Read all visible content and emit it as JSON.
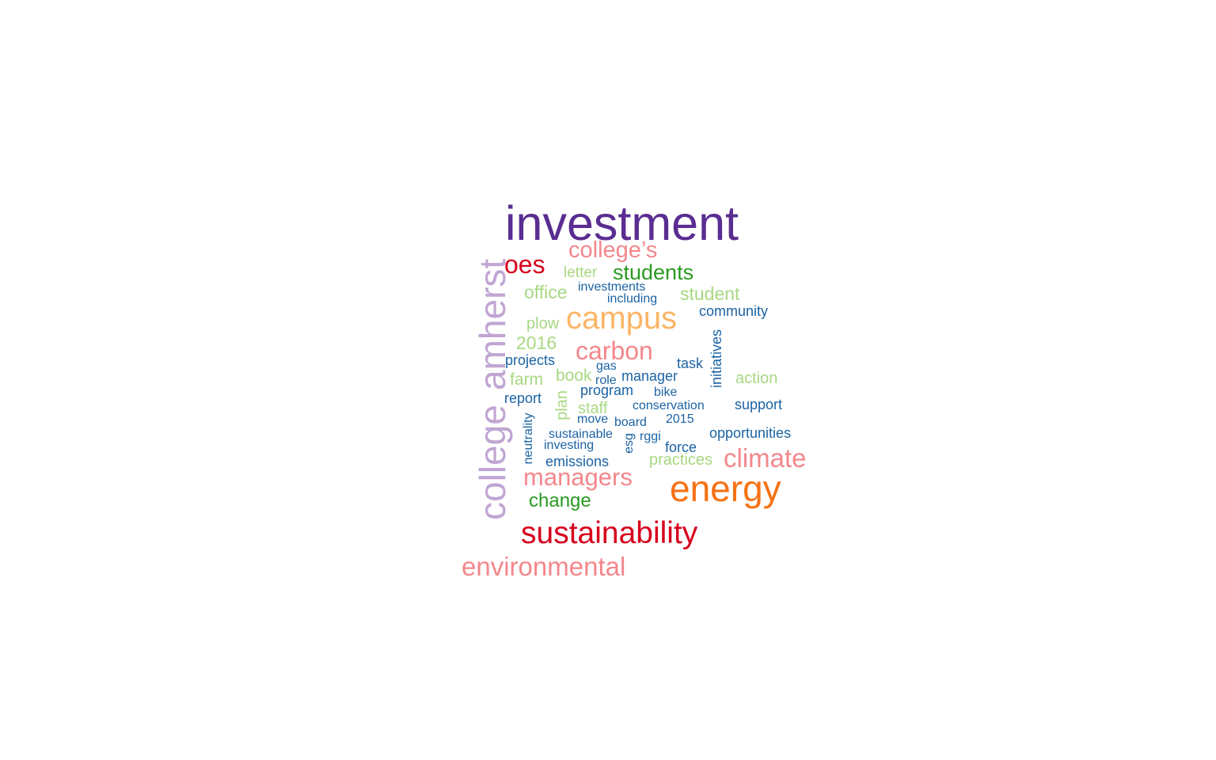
{
  "palette": {
    "purple": "#5a2d91",
    "lavender": "#c1a5d3",
    "red": "#d6001c",
    "pink": "#f4878c",
    "orange": "#f57214",
    "light_orange": "#fbb566",
    "green": "#2a9a22",
    "light_green": "#a8d882",
    "blue": "#1b63a4"
  },
  "words": [
    {
      "text": "investment",
      "color_key": "purple",
      "rotated": false
    },
    {
      "text": "college",
      "color_key": "lavender",
      "rotated": true
    },
    {
      "text": "amherst",
      "color_key": "lavender",
      "rotated": true
    },
    {
      "text": "energy",
      "color_key": "orange",
      "rotated": false
    },
    {
      "text": "sustainability",
      "color_key": "red",
      "rotated": false
    },
    {
      "text": "campus",
      "color_key": "light_orange",
      "rotated": false
    },
    {
      "text": "environmental",
      "color_key": "pink",
      "rotated": false
    },
    {
      "text": "climate",
      "color_key": "pink",
      "rotated": false
    },
    {
      "text": "managers",
      "color_key": "pink",
      "rotated": false
    },
    {
      "text": "carbon",
      "color_key": "pink",
      "rotated": false
    },
    {
      "text": "college’s",
      "color_key": "pink",
      "rotated": false
    },
    {
      "text": "oes",
      "color_key": "red",
      "rotated": false
    },
    {
      "text": "students",
      "color_key": "green",
      "rotated": false
    },
    {
      "text": "change",
      "color_key": "green",
      "rotated": false
    },
    {
      "text": "letter",
      "color_key": "light_green",
      "rotated": false
    },
    {
      "text": "office",
      "color_key": "light_green",
      "rotated": false
    },
    {
      "text": "student",
      "color_key": "light_green",
      "rotated": false
    },
    {
      "text": "plow",
      "color_key": "light_green",
      "rotated": false
    },
    {
      "text": "2016",
      "color_key": "light_green",
      "rotated": false
    },
    {
      "text": "farm",
      "color_key": "light_green",
      "rotated": false
    },
    {
      "text": "book",
      "color_key": "light_green",
      "rotated": false
    },
    {
      "text": "action",
      "color_key": "light_green",
      "rotated": false
    },
    {
      "text": "plan",
      "color_key": "light_green",
      "rotated": true
    },
    {
      "text": "staff",
      "color_key": "light_green",
      "rotated": false
    },
    {
      "text": "practices",
      "color_key": "light_green",
      "rotated": false
    },
    {
      "text": "investments",
      "color_key": "blue",
      "rotated": false
    },
    {
      "text": "including",
      "color_key": "blue",
      "rotated": false
    },
    {
      "text": "community",
      "color_key": "blue",
      "rotated": false
    },
    {
      "text": "initiatives",
      "color_key": "blue",
      "rotated": true
    },
    {
      "text": "projects",
      "color_key": "blue",
      "rotated": false
    },
    {
      "text": "gas",
      "color_key": "blue",
      "rotated": false
    },
    {
      "text": "task",
      "color_key": "blue",
      "rotated": false
    },
    {
      "text": "manager",
      "color_key": "blue",
      "rotated": false
    },
    {
      "text": "role",
      "color_key": "blue",
      "rotated": false
    },
    {
      "text": "report",
      "color_key": "blue",
      "rotated": false
    },
    {
      "text": "program",
      "color_key": "blue",
      "rotated": false
    },
    {
      "text": "bike",
      "color_key": "blue",
      "rotated": false
    },
    {
      "text": "conservation",
      "color_key": "blue",
      "rotated": false
    },
    {
      "text": "support",
      "color_key": "blue",
      "rotated": false
    },
    {
      "text": "neutrality",
      "color_key": "blue",
      "rotated": true
    },
    {
      "text": "move",
      "color_key": "blue",
      "rotated": false
    },
    {
      "text": "board",
      "color_key": "blue",
      "rotated": false
    },
    {
      "text": "2015",
      "color_key": "blue",
      "rotated": false
    },
    {
      "text": "sustainable",
      "color_key": "blue",
      "rotated": false
    },
    {
      "text": "esg",
      "color_key": "blue",
      "rotated": true
    },
    {
      "text": "rggi",
      "color_key": "blue",
      "rotated": false
    },
    {
      "text": "opportunities",
      "color_key": "blue",
      "rotated": false
    },
    {
      "text": "investing",
      "color_key": "blue",
      "rotated": false
    },
    {
      "text": "force",
      "color_key": "blue",
      "rotated": false
    },
    {
      "text": "emissions",
      "color_key": "blue",
      "rotated": false
    }
  ]
}
